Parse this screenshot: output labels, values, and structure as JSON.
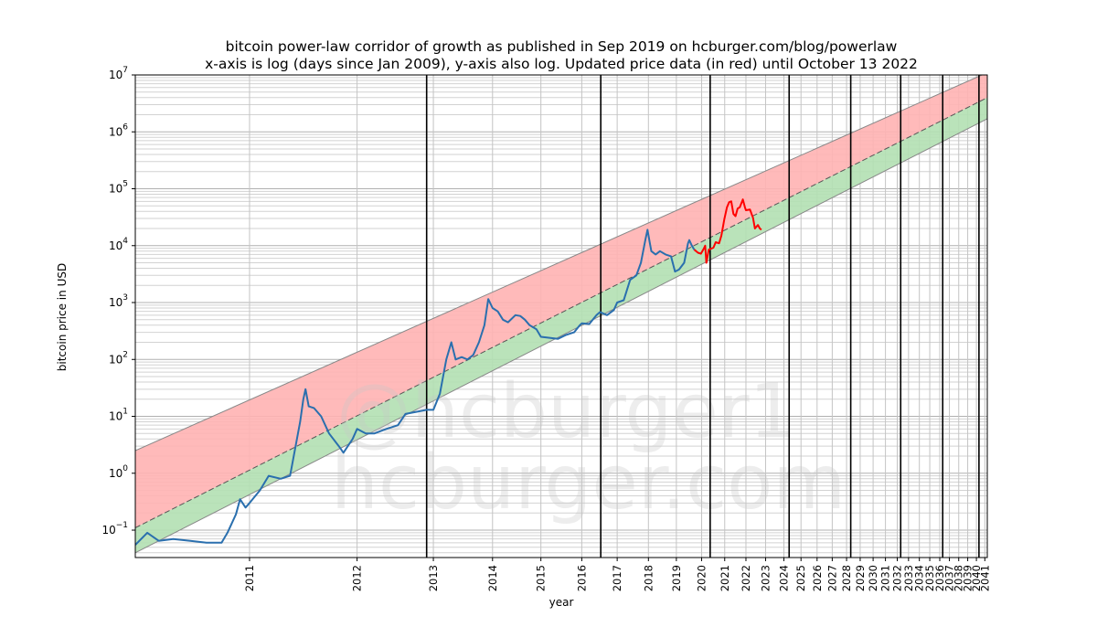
{
  "chart_data": {
    "type": "line",
    "title": "bitcoin power-law corridor of growth as published in Sep 2019 on hcburger.com/blog/powerlaw",
    "subtitle": "x-axis is log (days since Jan 2009), y-axis also log. Updated price data (in red) until October 13 2022",
    "xlabel": "year",
    "ylabel": "bitcoin price in USD",
    "xscale": "log",
    "yscale": "log",
    "xlim_year": [
      2010.3,
      2041.3
    ],
    "ylim": [
      0.033,
      10000000
    ],
    "x_tick_labels": [
      "2011",
      "2012",
      "2013",
      "2014",
      "2015",
      "2016",
      "2017",
      "2018",
      "2019",
      "2020",
      "2021",
      "2022",
      "2023",
      "2024",
      "2025",
      "2026",
      "2027",
      "2028",
      "2029",
      "2030",
      "2031",
      "2032",
      "2033",
      "2034",
      "2035",
      "2036",
      "2037",
      "2038",
      "2039",
      "2040",
      "2041"
    ],
    "y_tick_labels": [
      {
        "base": "10",
        "exp": "−1",
        "value": 0.1
      },
      {
        "base": "10",
        "exp": "0",
        "value": 1
      },
      {
        "base": "10",
        "exp": "1",
        "value": 10
      },
      {
        "base": "10",
        "exp": "2",
        "value": 100
      },
      {
        "base": "10",
        "exp": "3",
        "value": 1000
      },
      {
        "base": "10",
        "exp": "4",
        "value": 10000
      },
      {
        "base": "10",
        "exp": "5",
        "value": 100000
      },
      {
        "base": "10",
        "exp": "6",
        "value": 1000000
      },
      {
        "base": "10",
        "exp": "7",
        "value": 10000000
      }
    ],
    "grid": true,
    "corridor": {
      "upper_band_color": "#ffb3b3",
      "lower_band_color": "#b3e0b3",
      "upper_line": [
        [
          2010.3,
          2.5
        ],
        [
          2041.3,
          11000000
        ]
      ],
      "center_line": [
        [
          2010.3,
          0.11
        ],
        [
          2041.3,
          4000000
        ]
      ],
      "lower_line": [
        [
          2010.3,
          0.04
        ],
        [
          2041.3,
          1700000
        ]
      ]
    },
    "vertical_lines_year": [
      2012.9,
      2016.52,
      2020.36,
      2024.3,
      2028.3,
      2032.3,
      2036.3,
      2040.3
    ],
    "series": [
      {
        "color": "#2a6fae",
        "points": [
          [
            2010.3,
            0.055
          ],
          [
            2010.36,
            0.09
          ],
          [
            2010.42,
            0.065
          ],
          [
            2010.5,
            0.07
          ],
          [
            2010.6,
            0.065
          ],
          [
            2010.7,
            0.06
          ],
          [
            2010.8,
            0.06
          ],
          [
            2010.84,
            0.09
          ],
          [
            2010.9,
            0.19
          ],
          [
            2010.93,
            0.35
          ],
          [
            2010.97,
            0.25
          ],
          [
            2011.0,
            0.3
          ],
          [
            2011.08,
            0.5
          ],
          [
            2011.15,
            0.9
          ],
          [
            2011.25,
            0.8
          ],
          [
            2011.33,
            0.9
          ],
          [
            2011.42,
            8
          ],
          [
            2011.45,
            20
          ],
          [
            2011.47,
            30
          ],
          [
            2011.5,
            15
          ],
          [
            2011.55,
            14
          ],
          [
            2011.62,
            10
          ],
          [
            2011.7,
            5
          ],
          [
            2011.8,
            3
          ],
          [
            2011.85,
            2.3
          ],
          [
            2011.95,
            4
          ],
          [
            2012.0,
            6
          ],
          [
            2012.1,
            5
          ],
          [
            2012.2,
            5
          ],
          [
            2012.35,
            6
          ],
          [
            2012.5,
            7
          ],
          [
            2012.6,
            11
          ],
          [
            2012.75,
            12
          ],
          [
            2012.9,
            13
          ],
          [
            2013.0,
            13
          ],
          [
            2013.1,
            25
          ],
          [
            2013.2,
            100
          ],
          [
            2013.28,
            200
          ],
          [
            2013.35,
            100
          ],
          [
            2013.45,
            110
          ],
          [
            2013.55,
            100
          ],
          [
            2013.65,
            120
          ],
          [
            2013.75,
            200
          ],
          [
            2013.85,
            400
          ],
          [
            2013.92,
            1150
          ],
          [
            2014.0,
            800
          ],
          [
            2014.1,
            700
          ],
          [
            2014.2,
            500
          ],
          [
            2014.3,
            450
          ],
          [
            2014.45,
            600
          ],
          [
            2014.55,
            580
          ],
          [
            2014.65,
            500
          ],
          [
            2014.75,
            400
          ],
          [
            2014.9,
            340
          ],
          [
            2015.0,
            250
          ],
          [
            2015.2,
            240
          ],
          [
            2015.4,
            230
          ],
          [
            2015.6,
            270
          ],
          [
            2015.8,
            300
          ],
          [
            2015.95,
            400
          ],
          [
            2016.0,
            430
          ],
          [
            2016.2,
            420
          ],
          [
            2016.4,
            600
          ],
          [
            2016.5,
            680
          ],
          [
            2016.7,
            600
          ],
          [
            2016.9,
            740
          ],
          [
            2017.0,
            1000
          ],
          [
            2017.2,
            1100
          ],
          [
            2017.4,
            2500
          ],
          [
            2017.6,
            3000
          ],
          [
            2017.75,
            5000
          ],
          [
            2017.9,
            13000
          ],
          [
            2017.97,
            19000
          ],
          [
            2018.05,
            11000
          ],
          [
            2018.1,
            8000
          ],
          [
            2018.25,
            7000
          ],
          [
            2018.4,
            8000
          ],
          [
            2018.6,
            7000
          ],
          [
            2018.8,
            6500
          ],
          [
            2018.95,
            3500
          ],
          [
            2019.1,
            3800
          ],
          [
            2019.3,
            5000
          ],
          [
            2019.45,
            11000
          ],
          [
            2019.5,
            12500
          ],
          [
            2019.6,
            10000
          ],
          [
            2019.7,
            8500
          ]
        ]
      },
      {
        "color": "#ff0000",
        "points": [
          [
            2019.7,
            8500
          ],
          [
            2019.85,
            7500
          ],
          [
            2019.97,
            7200
          ],
          [
            2020.1,
            9000
          ],
          [
            2020.15,
            10000
          ],
          [
            2020.2,
            5000
          ],
          [
            2020.3,
            8500
          ],
          [
            2020.5,
            9200
          ],
          [
            2020.6,
            11500
          ],
          [
            2020.75,
            11000
          ],
          [
            2020.85,
            15000
          ],
          [
            2020.98,
            29000
          ],
          [
            2021.1,
            47000
          ],
          [
            2021.2,
            58000
          ],
          [
            2021.3,
            60000
          ],
          [
            2021.4,
            36000
          ],
          [
            2021.5,
            33000
          ],
          [
            2021.6,
            45000
          ],
          [
            2021.7,
            47000
          ],
          [
            2021.85,
            65000
          ],
          [
            2021.95,
            47000
          ],
          [
            2022.0,
            42000
          ],
          [
            2022.2,
            43000
          ],
          [
            2022.35,
            31000
          ],
          [
            2022.45,
            20000
          ],
          [
            2022.6,
            23000
          ],
          [
            2022.7,
            20000
          ],
          [
            2022.78,
            19000
          ]
        ]
      }
    ],
    "watermark": [
      "@hcburger1",
      "hcburger.com"
    ]
  }
}
